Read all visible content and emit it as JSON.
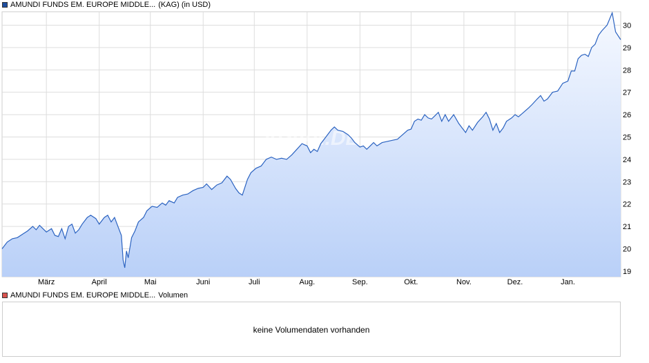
{
  "legend_price": {
    "name": "AMUNDI FUNDS EM. EUROPE MIDDLE...",
    "extra": "(KAG)  (in USD)",
    "color": "#1f4fa0"
  },
  "legend_volume": {
    "name": "AMUNDI FUNDS EM. EUROPE MIDDLE...",
    "extra": "Volumen",
    "color": "#d9534f"
  },
  "volume_panel": {
    "message": "keine Volumendaten vorhanden"
  },
  "watermark": "ARIVA.DE",
  "colors": {
    "line": "#2a62c0",
    "area_top": "#f6f9ff",
    "area_bottom": "#b9d0f8",
    "grid": "#dddddd",
    "border": "#cccccc"
  },
  "chart_data": {
    "type": "area",
    "title": "",
    "xlabel": "",
    "ylabel": "",
    "ylim": [
      18.75,
      30.6
    ],
    "y_ticks": [
      19,
      20,
      21,
      22,
      23,
      24,
      25,
      26,
      27,
      28,
      29,
      30
    ],
    "grid": true,
    "x_range": [
      "2023-02-03",
      "2024-02-01"
    ],
    "x_ticks": [
      {
        "label": "März",
        "date": "2023-03-01"
      },
      {
        "label": "April",
        "date": "2023-04-01"
      },
      {
        "label": "Mai",
        "date": "2023-05-01"
      },
      {
        "label": "Juni",
        "date": "2023-06-01"
      },
      {
        "label": "Juli",
        "date": "2023-07-01"
      },
      {
        "label": "Aug.",
        "date": "2023-08-01"
      },
      {
        "label": "Sep.",
        "date": "2023-09-01"
      },
      {
        "label": "Okt.",
        "date": "2023-10-01"
      },
      {
        "label": "Nov.",
        "date": "2023-11-01"
      },
      {
        "label": "Dez.",
        "date": "2023-12-01"
      },
      {
        "label": "Jan.",
        "date": "2024-01-01"
      }
    ],
    "series": [
      {
        "name": "AMUNDI FUNDS EM. EUROPE MIDDLE...",
        "points": [
          [
            "2023-02-03",
            20.0
          ],
          [
            "2023-02-06",
            20.3
          ],
          [
            "2023-02-09",
            20.45
          ],
          [
            "2023-02-12",
            20.5
          ],
          [
            "2023-02-15",
            20.65
          ],
          [
            "2023-02-18",
            20.8
          ],
          [
            "2023-02-21",
            21.0
          ],
          [
            "2023-02-23",
            20.85
          ],
          [
            "2023-02-25",
            21.05
          ],
          [
            "2023-02-27",
            20.9
          ],
          [
            "2023-03-01",
            20.75
          ],
          [
            "2023-03-04",
            20.9
          ],
          [
            "2023-03-06",
            20.6
          ],
          [
            "2023-03-08",
            20.55
          ],
          [
            "2023-03-10",
            20.9
          ],
          [
            "2023-03-12",
            20.45
          ],
          [
            "2023-03-14",
            21.0
          ],
          [
            "2023-03-16",
            21.1
          ],
          [
            "2023-03-18",
            20.7
          ],
          [
            "2023-03-20",
            20.85
          ],
          [
            "2023-03-22",
            21.1
          ],
          [
            "2023-03-25",
            21.4
          ],
          [
            "2023-03-27",
            21.5
          ],
          [
            "2023-03-30",
            21.35
          ],
          [
            "2023-04-01",
            21.1
          ],
          [
            "2023-04-04",
            21.4
          ],
          [
            "2023-04-06",
            21.5
          ],
          [
            "2023-04-08",
            21.2
          ],
          [
            "2023-04-10",
            21.4
          ],
          [
            "2023-04-12",
            21.0
          ],
          [
            "2023-04-14",
            20.6
          ],
          [
            "2023-04-15",
            19.5
          ],
          [
            "2023-04-16",
            19.15
          ],
          [
            "2023-04-17",
            19.9
          ],
          [
            "2023-04-18",
            19.6
          ],
          [
            "2023-04-20",
            20.5
          ],
          [
            "2023-04-22",
            20.8
          ],
          [
            "2023-04-24",
            21.2
          ],
          [
            "2023-04-27",
            21.4
          ],
          [
            "2023-04-29",
            21.7
          ],
          [
            "2023-05-02",
            21.9
          ],
          [
            "2023-05-05",
            21.85
          ],
          [
            "2023-05-08",
            22.05
          ],
          [
            "2023-05-10",
            21.95
          ],
          [
            "2023-05-12",
            22.15
          ],
          [
            "2023-05-15",
            22.05
          ],
          [
            "2023-05-17",
            22.3
          ],
          [
            "2023-05-20",
            22.4
          ],
          [
            "2023-05-23",
            22.45
          ],
          [
            "2023-05-26",
            22.6
          ],
          [
            "2023-05-29",
            22.7
          ],
          [
            "2023-06-01",
            22.75
          ],
          [
            "2023-06-03",
            22.9
          ],
          [
            "2023-06-06",
            22.65
          ],
          [
            "2023-06-09",
            22.85
          ],
          [
            "2023-06-12",
            22.95
          ],
          [
            "2023-06-15",
            23.25
          ],
          [
            "2023-06-17",
            23.1
          ],
          [
            "2023-06-20",
            22.7
          ],
          [
            "2023-06-22",
            22.5
          ],
          [
            "2023-06-24",
            22.4
          ],
          [
            "2023-06-27",
            23.1
          ],
          [
            "2023-06-29",
            23.4
          ],
          [
            "2023-07-02",
            23.6
          ],
          [
            "2023-07-05",
            23.7
          ],
          [
            "2023-07-08",
            24.0
          ],
          [
            "2023-07-11",
            24.1
          ],
          [
            "2023-07-14",
            24.0
          ],
          [
            "2023-07-17",
            24.05
          ],
          [
            "2023-07-20",
            24.0
          ],
          [
            "2023-07-23",
            24.2
          ],
          [
            "2023-07-26",
            24.45
          ],
          [
            "2023-07-29",
            24.7
          ],
          [
            "2023-08-01",
            24.6
          ],
          [
            "2023-08-03",
            24.3
          ],
          [
            "2023-08-05",
            24.45
          ],
          [
            "2023-08-07",
            24.35
          ],
          [
            "2023-08-09",
            24.7
          ],
          [
            "2023-08-12",
            25.0
          ],
          [
            "2023-08-15",
            25.3
          ],
          [
            "2023-08-17",
            25.45
          ],
          [
            "2023-08-19",
            25.3
          ],
          [
            "2023-08-22",
            25.25
          ],
          [
            "2023-08-25",
            25.1
          ],
          [
            "2023-08-27",
            24.95
          ],
          [
            "2023-08-29",
            24.75
          ],
          [
            "2023-09-01",
            24.55
          ],
          [
            "2023-09-03",
            24.6
          ],
          [
            "2023-09-05",
            24.45
          ],
          [
            "2023-09-07",
            24.6
          ],
          [
            "2023-09-09",
            24.75
          ],
          [
            "2023-09-11",
            24.6
          ],
          [
            "2023-09-14",
            24.75
          ],
          [
            "2023-09-17",
            24.8
          ],
          [
            "2023-09-20",
            24.85
          ],
          [
            "2023-09-23",
            24.9
          ],
          [
            "2023-09-26",
            25.1
          ],
          [
            "2023-09-29",
            25.3
          ],
          [
            "2023-10-01",
            25.35
          ],
          [
            "2023-10-03",
            25.7
          ],
          [
            "2023-10-05",
            25.8
          ],
          [
            "2023-10-07",
            25.75
          ],
          [
            "2023-10-09",
            26.0
          ],
          [
            "2023-10-11",
            25.85
          ],
          [
            "2023-10-13",
            25.8
          ],
          [
            "2023-10-15",
            25.95
          ],
          [
            "2023-10-17",
            26.1
          ],
          [
            "2023-10-19",
            25.7
          ],
          [
            "2023-10-21",
            26.0
          ],
          [
            "2023-10-23",
            25.7
          ],
          [
            "2023-10-26",
            26.0
          ],
          [
            "2023-10-29",
            25.6
          ],
          [
            "2023-10-31",
            25.4
          ],
          [
            "2023-11-02",
            25.2
          ],
          [
            "2023-11-04",
            25.5
          ],
          [
            "2023-11-06",
            25.3
          ],
          [
            "2023-11-09",
            25.65
          ],
          [
            "2023-11-12",
            25.9
          ],
          [
            "2023-11-14",
            26.1
          ],
          [
            "2023-11-16",
            25.8
          ],
          [
            "2023-11-18",
            25.3
          ],
          [
            "2023-11-20",
            25.6
          ],
          [
            "2023-11-22",
            25.2
          ],
          [
            "2023-11-24",
            25.4
          ],
          [
            "2023-11-26",
            25.7
          ],
          [
            "2023-11-29",
            25.85
          ],
          [
            "2023-12-01",
            26.0
          ],
          [
            "2023-12-03",
            25.9
          ],
          [
            "2023-12-06",
            26.1
          ],
          [
            "2023-12-09",
            26.3
          ],
          [
            "2023-12-11",
            26.45
          ],
          [
            "2023-12-14",
            26.7
          ],
          [
            "2023-12-16",
            26.85
          ],
          [
            "2023-12-18",
            26.6
          ],
          [
            "2023-12-20",
            26.7
          ],
          [
            "2023-12-23",
            27.0
          ],
          [
            "2023-12-26",
            27.05
          ],
          [
            "2023-12-29",
            27.4
          ],
          [
            "2024-01-01",
            27.5
          ],
          [
            "2024-01-03",
            27.95
          ],
          [
            "2024-01-05",
            27.95
          ],
          [
            "2024-01-07",
            28.5
          ],
          [
            "2024-01-09",
            28.65
          ],
          [
            "2024-01-11",
            28.7
          ],
          [
            "2024-01-13",
            28.6
          ],
          [
            "2024-01-15",
            29.0
          ],
          [
            "2024-01-17",
            29.15
          ],
          [
            "2024-01-19",
            29.55
          ],
          [
            "2024-01-21",
            29.75
          ],
          [
            "2024-01-24",
            30.0
          ],
          [
            "2024-01-27",
            30.55
          ],
          [
            "2024-01-29",
            29.7
          ],
          [
            "2024-02-01",
            29.35
          ]
        ]
      }
    ]
  }
}
